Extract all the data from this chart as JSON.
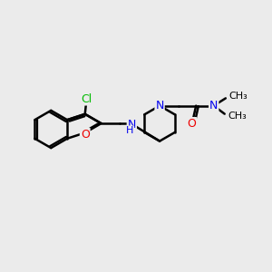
{
  "background_color": "#ebebeb",
  "bond_color": "#000000",
  "bond_width": 1.8,
  "atom_colors": {
    "C": "#000000",
    "N": "#0000ee",
    "O": "#ee0000",
    "Cl": "#00bb00",
    "H": "#0000ee"
  },
  "font_size": 9,
  "fig_width": 3.0,
  "fig_height": 3.0,
  "dpi": 100,
  "xlim": [
    -0.5,
    7.5
  ],
  "ylim": [
    -1.2,
    3.2
  ]
}
